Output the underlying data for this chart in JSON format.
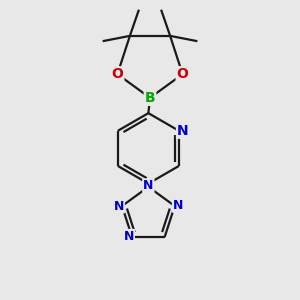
{
  "bg_color": "#e8e8e8",
  "bond_color": "#1a1a1a",
  "N_color": "#0000cc",
  "O_color": "#cc0000",
  "B_color": "#00aa00",
  "line_width": 1.6,
  "dbo": 0.012,
  "font_size_atom": 10,
  "figsize": [
    3.0,
    3.0
  ],
  "dpi": 100,
  "xlim": [
    0.15,
    0.85
  ],
  "ylim": [
    0.05,
    0.97
  ]
}
